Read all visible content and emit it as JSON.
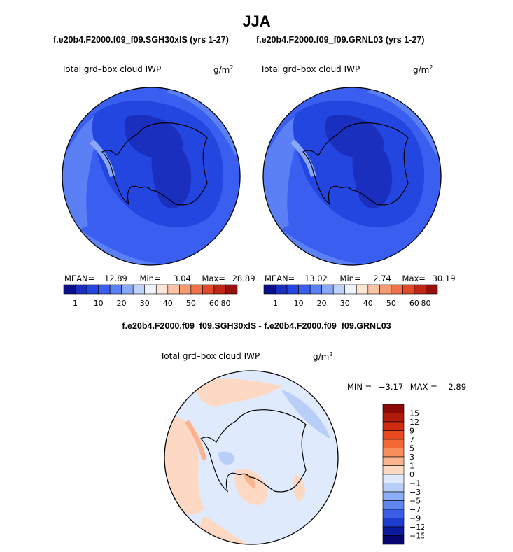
{
  "figure": {
    "season": "JJA"
  },
  "panels": [
    {
      "case": "f.e20b4.F2000.f09_f09.SGH30xlS (yrs 1-27)",
      "variable": "Total grd–box cloud IWP",
      "units_base": "g/m",
      "units_exp": "2",
      "mean_label": "MEAN=",
      "mean": "12.89",
      "min_label": "Min=",
      "min": "3.04",
      "max_label": "Max=",
      "max": "28.89"
    },
    {
      "case": "f.e20b4.F2000.f09_f09.GRNL03 (yrs 1-27)",
      "variable": "Total grd–box cloud IWP",
      "units_base": "g/m",
      "units_exp": "2",
      "mean_label": "MEAN=",
      "mean": "13.02",
      "min_label": "Min=",
      "min": "2.74",
      "max_label": "Max=",
      "max": "30.19"
    }
  ],
  "colorbar_top": {
    "labels": [
      "1",
      "10",
      "20",
      "30",
      "40",
      "50",
      "60",
      "80"
    ],
    "colors": [
      "#0a0f8c",
      "#1b2fbf",
      "#2345e0",
      "#3a5ff0",
      "#5b80f5",
      "#8aa8f7",
      "#bfd2fa",
      "#eef3fd",
      "#fde5d6",
      "#fbc4a6",
      "#f79b73",
      "#f1734a",
      "#e24a2a",
      "#c22716",
      "#96120c"
    ]
  },
  "difference": {
    "title": "f.e20b4.F2000.f09_f09.SGH30xlS - f.e20b4.F2000.f09_f09.GRNL03",
    "variable": "Total grd–box cloud IWP",
    "units_base": "g/m",
    "units_exp": "2",
    "min_label": "MIN =",
    "min": "−3.17",
    "max_label": "MAX =",
    "max": "2.89",
    "colorbar": {
      "labels": [
        "15",
        "12",
        "9",
        "7",
        "5",
        "3",
        "1",
        "0",
        "−1",
        "−3",
        "−5",
        "−7",
        "−9",
        "−12",
        "−15"
      ],
      "colors": [
        "#8b0a05",
        "#b01a0a",
        "#d02d10",
        "#e8491e",
        "#f46a36",
        "#f88e5c",
        "#fbb48e",
        "#fdd9c4",
        "#dfeafc",
        "#b8cef8",
        "#8daef4",
        "#5f86ee",
        "#3a5fe6",
        "#1e3cd0",
        "#0c1a9e",
        "#06066e"
      ]
    }
  },
  "chart_data": {
    "type": "heatmap",
    "projection": "south polar stereographic",
    "season": "JJA",
    "variable": "Total grd–box cloud IWP",
    "units": "g/m^2",
    "panels": [
      {
        "case": "f.e20b4.F2000.f09_f09.SGH30xlS (yrs 1-27)",
        "mean": 12.89,
        "min": 3.04,
        "max": 28.89,
        "levels": [
          1,
          10,
          20,
          30,
          40,
          50,
          60,
          80
        ]
      },
      {
        "case": "f.e20b4.F2000.f09_f09.GRNL03 (yrs 1-27)",
        "mean": 13.02,
        "min": 2.74,
        "max": 30.19,
        "levels": [
          1,
          10,
          20,
          30,
          40,
          50,
          60,
          80
        ]
      },
      {
        "case": "f.e20b4.F2000.f09_f09.SGH30xlS - f.e20b4.F2000.f09_f09.GRNL03",
        "min": -3.17,
        "max": 2.89,
        "levels": [
          -15,
          -12,
          -9,
          -7,
          -5,
          -3,
          -1,
          0,
          1,
          3,
          5,
          7,
          9,
          12,
          15
        ]
      }
    ]
  }
}
